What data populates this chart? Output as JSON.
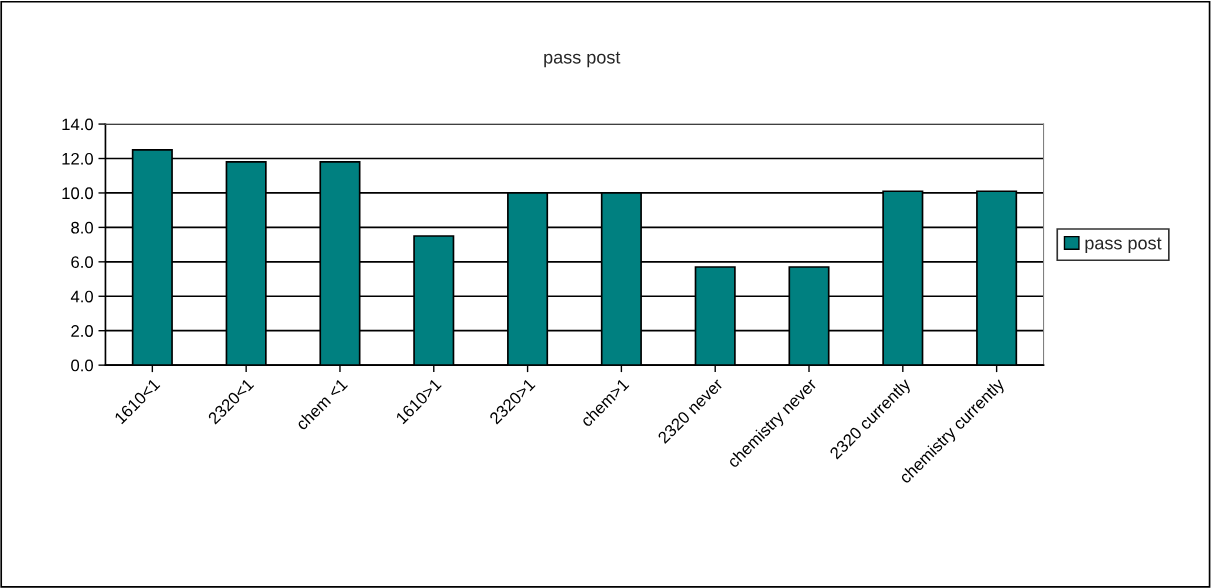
{
  "chart_data": {
    "type": "bar",
    "title": "pass post",
    "categories": [
      "1610<1",
      "2320<1",
      "chem <1",
      "1610>1",
      "2320>1",
      "chem>1",
      "2320 never",
      "chemistry never",
      "2320 currently",
      "chemistry currently"
    ],
    "series": [
      {
        "name": "pass post",
        "color": "#008080",
        "values": [
          12.5,
          11.8,
          11.8,
          7.5,
          10.0,
          10.0,
          5.7,
          5.7,
          10.1,
          10.1
        ]
      }
    ],
    "ylim": [
      0,
      14
    ],
    "yticks": [
      {
        "value": 0,
        "label": "0.0"
      },
      {
        "value": 2,
        "label": "2.0"
      },
      {
        "value": 4,
        "label": "4.0"
      },
      {
        "value": 6,
        "label": "6.0"
      },
      {
        "value": 8,
        "label": "8.0"
      },
      {
        "value": 10,
        "label": "10.0"
      },
      {
        "value": 12,
        "label": "12.0"
      },
      {
        "value": 14,
        "label": "14.0"
      }
    ],
    "grid": "y",
    "legend": "right"
  }
}
